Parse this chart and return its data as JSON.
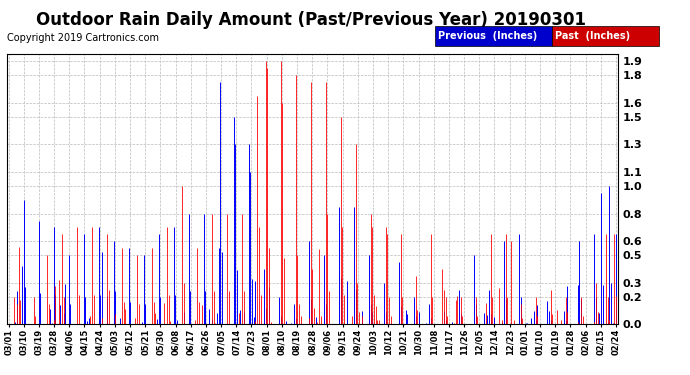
{
  "title": "Outdoor Rain Daily Amount (Past/Previous Year) 20190301",
  "copyright": "Copyright 2019 Cartronics.com",
  "legend_previous_label": "Previous  (Inches)",
  "legend_past_label": "Past  (Inches)",
  "background_color": "#ffffff",
  "plot_bg_color": "#ffffff",
  "grid_color": "#bbbbbb",
  "yticks": [
    0.0,
    0.2,
    0.3,
    0.5,
    0.6,
    0.8,
    1.0,
    1.1,
    1.3,
    1.5,
    1.6,
    1.8,
    1.9
  ],
  "ylim_max": 1.95,
  "title_fontsize": 12,
  "copyright_fontsize": 7,
  "x_tick_fontsize": 6,
  "y_tick_fontsize": 8,
  "previous_color": "#0000FF",
  "past_color": "#FF0000",
  "legend_prev_bg": "#0000CC",
  "legend_past_bg": "#CC0000",
  "xtick_labels": [
    "03/01",
    "03/10",
    "03/19",
    "03/28",
    "04/06",
    "04/15",
    "04/24",
    "05/03",
    "05/12",
    "05/21",
    "05/30",
    "06/08",
    "06/17",
    "06/26",
    "07/05",
    "07/14",
    "07/23",
    "08/01",
    "08/10",
    "08/19",
    "08/28",
    "09/06",
    "09/15",
    "09/24",
    "10/03",
    "10/12",
    "10/21",
    "10/30",
    "11/08",
    "11/17",
    "11/26",
    "12/05",
    "12/14",
    "12/23",
    "01/01",
    "01/10",
    "01/19",
    "01/28",
    "02/06",
    "02/15",
    "02/24"
  ]
}
